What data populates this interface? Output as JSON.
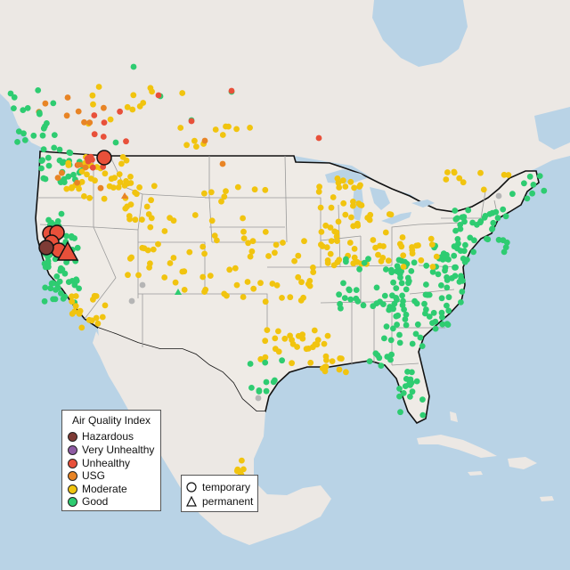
{
  "legend": {
    "title": "Air Quality Index",
    "items": [
      {
        "label": "Hazardous",
        "color": "#7e3b35"
      },
      {
        "label": "Very Unhealthy",
        "color": "#8e5ba3"
      },
      {
        "label": "Unhealthy",
        "color": "#e8503a"
      },
      {
        "label": "USG",
        "color": "#e88425"
      },
      {
        "label": "Moderate",
        "color": "#f1c40f"
      },
      {
        "label": "Good",
        "color": "#2ecc71"
      }
    ]
  },
  "shape_legend": {
    "items": [
      {
        "label": "temporary",
        "shape": "circle"
      },
      {
        "label": "permanent",
        "shape": "triangle"
      }
    ]
  },
  "colors": {
    "ocean": "#b9d3e6",
    "land": "#ece8e4",
    "us_land": "#efebe6",
    "border": "#111111",
    "state_line": "#9a9a9a",
    "no_data": "#b5b5b5"
  }
}
